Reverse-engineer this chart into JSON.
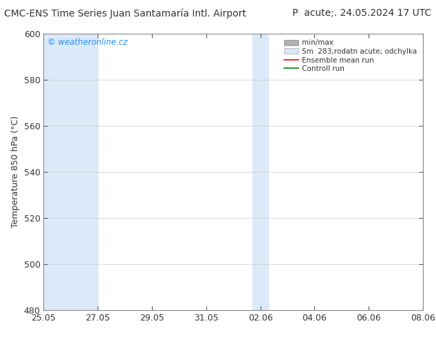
{
  "title_left": "CMC-ENS Time Series Juan Santamaría Intl. Airport",
  "title_right": "P  acute;. 24.05.2024 17 UTC",
  "ylabel": "Temperature 850 hPa (°C)",
  "ylim": [
    480,
    600
  ],
  "yticks": [
    480,
    500,
    520,
    540,
    560,
    580,
    600
  ],
  "xtick_labels": [
    "25.05",
    "27.05",
    "29.05",
    "31.05",
    "02.06",
    "04.06",
    "06.06",
    "08.06"
  ],
  "xtick_positions": [
    0,
    2,
    4,
    6,
    8,
    10,
    12,
    14
  ],
  "watermark": "© weatheronline.cz",
  "watermark_color": "#1E90FF",
  "bg_color": "#ffffff",
  "plot_bg_color": "#ffffff",
  "shaded_color": "#dce9f8",
  "grid_color": "#cccccc",
  "tick_color": "#555555",
  "spine_color": "#888888",
  "title_fontsize": 10,
  "label_fontsize": 9,
  "tick_fontsize": 9,
  "legend_minmax_color": "#b0b0b0",
  "legend_sm_color": "#d8e8f5",
  "legend_ens_color": "#ff0000",
  "legend_ctrl_color": "#008000"
}
